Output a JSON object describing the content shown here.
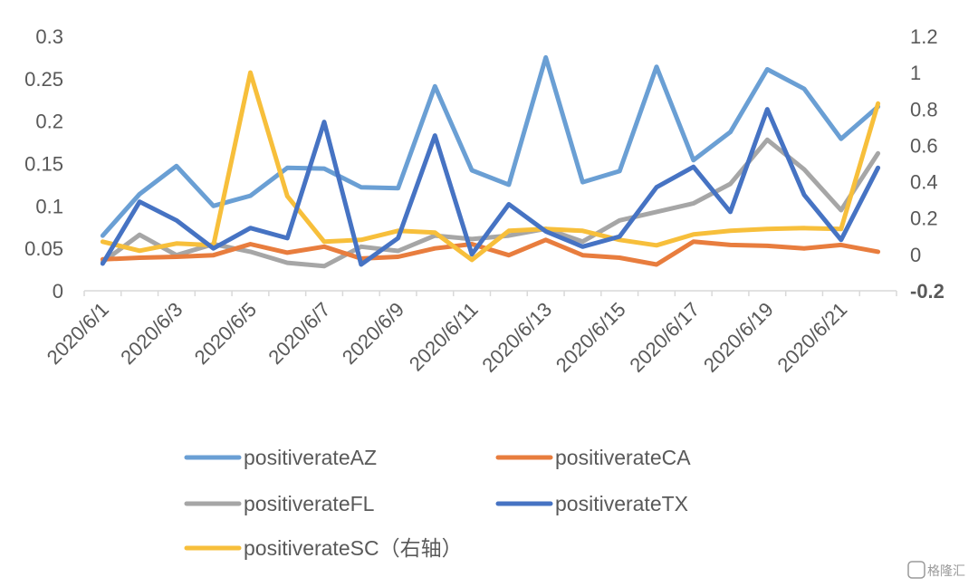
{
  "chart_data": {
    "type": "line",
    "title": "",
    "xlabel": "",
    "ylabel": "",
    "y2label": "",
    "ylim": [
      0,
      0.3
    ],
    "y2lim": [
      -0.2,
      1.2
    ],
    "y_ticks": [
      "0",
      "0.05",
      "0.1",
      "0.15",
      "0.2",
      "0.25",
      "0.3"
    ],
    "y2_ticks": [
      "-0.2",
      "0",
      "0.2",
      "0.4",
      "0.6",
      "0.8",
      "1",
      "1.2"
    ],
    "x": [
      "2020/6/1",
      "2020/6/2",
      "2020/6/3",
      "2020/6/4",
      "2020/6/5",
      "2020/6/6",
      "2020/6/7",
      "2020/6/8",
      "2020/6/9",
      "2020/6/10",
      "2020/6/11",
      "2020/6/12",
      "2020/6/13",
      "2020/6/14",
      "2020/6/15",
      "2020/6/16",
      "2020/6/17",
      "2020/6/18",
      "2020/6/19",
      "2020/6/20",
      "2020/6/21",
      "2020/6/22"
    ],
    "x_tick_labels": [
      "2020/6/1",
      "2020/6/3",
      "2020/6/5",
      "2020/6/7",
      "2020/6/9",
      "2020/6/11",
      "2020/6/13",
      "2020/6/15",
      "2020/6/17",
      "2020/6/19",
      "2020/6/21"
    ],
    "series": [
      {
        "name": "positiverateAZ",
        "axis": "left",
        "color": "#6a9fd4",
        "values": [
          0.065,
          0.114,
          0.147,
          0.1,
          0.112,
          0.145,
          0.144,
          0.122,
          0.121,
          0.241,
          0.142,
          0.125,
          0.275,
          0.128,
          0.141,
          0.264,
          0.154,
          0.187,
          0.261,
          0.238,
          0.179,
          0.217
        ]
      },
      {
        "name": "positiverateCA",
        "axis": "left",
        "color": "#e87d3e",
        "values": [
          0.037,
          0.039,
          0.04,
          0.042,
          0.055,
          0.045,
          0.052,
          0.038,
          0.04,
          0.05,
          0.055,
          0.042,
          0.06,
          0.042,
          0.039,
          0.031,
          0.058,
          0.054,
          0.053,
          0.05,
          0.054,
          0.046
        ]
      },
      {
        "name": "positiverateFL",
        "axis": "left",
        "color": "#a6a6a6",
        "values": [
          0.034,
          0.066,
          0.042,
          0.055,
          0.046,
          0.033,
          0.029,
          0.052,
          0.047,
          0.065,
          0.061,
          0.065,
          0.073,
          0.058,
          0.083,
          0.093,
          0.103,
          0.126,
          0.178,
          0.143,
          0.095,
          0.162
        ]
      },
      {
        "name": "positiverateTX",
        "axis": "left",
        "color": "#4673c3",
        "values": [
          0.032,
          0.105,
          0.083,
          0.05,
          0.074,
          0.062,
          0.199,
          0.031,
          0.062,
          0.183,
          0.043,
          0.102,
          0.07,
          0.052,
          0.064,
          0.122,
          0.146,
          0.093,
          0.214,
          0.113,
          0.06,
          0.145
        ]
      },
      {
        "name": "positiverateSC（右轴）",
        "axis": "right",
        "color": "#f7bf3b",
        "values": [
          0.07,
          0.02,
          0.06,
          0.05,
          1.0,
          0.32,
          0.07,
          0.08,
          0.13,
          0.12,
          -0.03,
          0.13,
          0.14,
          0.13,
          0.08,
          0.05,
          0.11,
          0.13,
          0.14,
          0.145,
          0.14,
          0.83
        ]
      }
    ],
    "legend": [
      "positiverateAZ",
      "positiverateCA",
      "positiverateFL",
      "positiverateTX",
      "positiverateSC（右轴）"
    ],
    "legend_position": "bottom",
    "grid": false
  },
  "watermark": "格隆汇"
}
